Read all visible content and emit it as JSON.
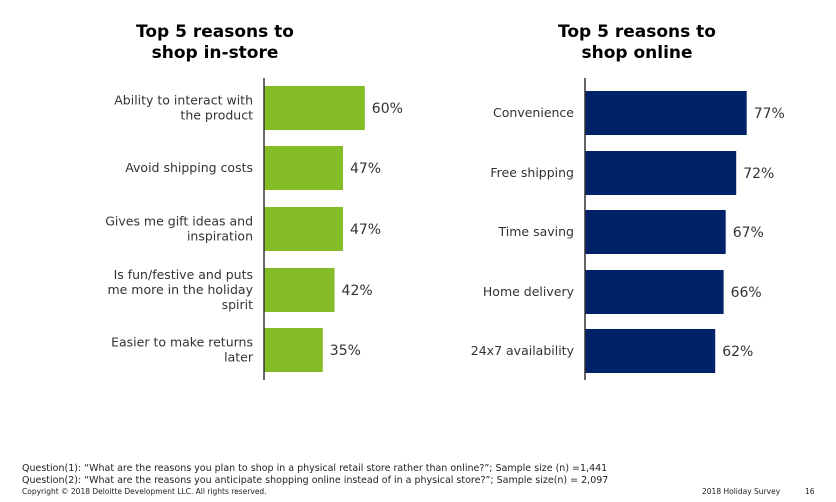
{
  "chart_data": [
    {
      "type": "bar",
      "orientation": "horizontal",
      "title": "Top 5 reasons to shop in-store",
      "color": "#84bc27",
      "categories": [
        "Ability to interact with the product",
        "Avoid shipping costs",
        "Gives me gift ideas and inspiration",
        "Is fun/festive and puts me more in the holiday spirit",
        "Easier to make returns later"
      ],
      "values": [
        60,
        47,
        47,
        42,
        35
      ],
      "labels": [
        "60%",
        "47%",
        "47%",
        "42%",
        "35%"
      ],
      "unit": "%"
    },
    {
      "type": "bar",
      "orientation": "horizontal",
      "title": "Top 5 reasons to shop online",
      "color": "#012169",
      "categories": [
        "Convenience",
        "Free shipping",
        "Time saving",
        "Home delivery",
        "24x7 availability"
      ],
      "values": [
        77,
        72,
        67,
        66,
        62
      ],
      "labels": [
        "77%",
        "72%",
        "67%",
        "66%",
        "62%"
      ],
      "unit": "%"
    }
  ],
  "titles": {
    "left_line1": "Top 5 reasons to",
    "left_line2": "shop in-store",
    "right_line1": "Top 5 reasons to",
    "right_line2": "shop online"
  },
  "footer": {
    "q1": "Question(1): “What are the reasons you plan to shop in a physical retail store rather than online?”; Sample size (n) =1,441",
    "q2": "Question(2): “What are the reasons you anticipate shopping online instead of in a physical store?”; Sample size(n) = 2,097",
    "copyright": "Copyright © 2018 Deloitte Development LLC. All rights reserved.",
    "survey": "2018 Holiday Survey",
    "page": "16"
  }
}
